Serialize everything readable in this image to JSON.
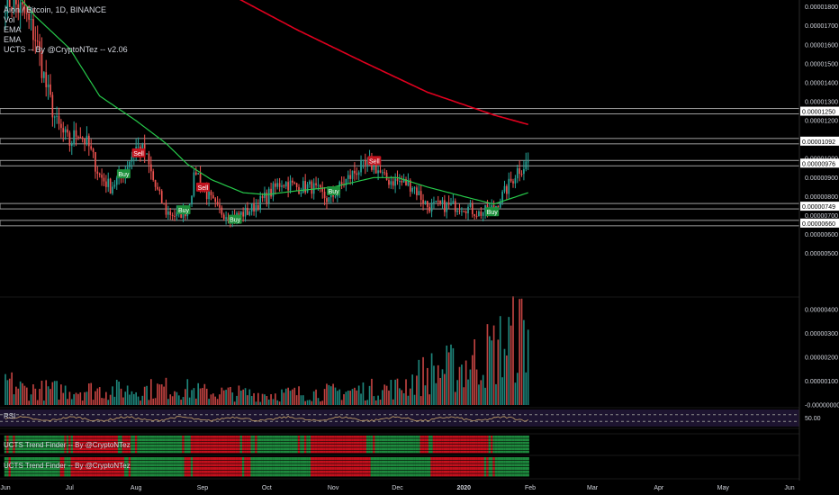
{
  "header": {
    "symbol_line": "Aion / Bitcoin, 1D, BINANCE",
    "indicators": [
      "Vol",
      "EMA",
      "EMA",
      "UCTS -- By @CryptoNTez -- v2.06"
    ]
  },
  "panels": {
    "rsi_label": "RSI",
    "rsi_mid_tick": "50.00",
    "trend1_label": "UCTS Trend Finder -- By @CryptoNTez",
    "trend2_label": "UCTS Trend Finder -- By @CryptoNTez"
  },
  "colors": {
    "up": "#26a69a",
    "down": "#ef5350",
    "ema_fast": "#26c94a",
    "ema_slow": "#e0001e",
    "buy_bg": "#1b8f3a",
    "sell_bg": "#c2131e",
    "rsi_bg": "#1d1430",
    "rsi_line": "#c9a56b"
  },
  "chart_data": {
    "type": "candlestick",
    "x_labels": [
      "Jun",
      "Jul",
      "Aug",
      "Sep",
      "Oct",
      "Nov",
      "Dec",
      "2020",
      "Feb",
      "Mar",
      "Apr",
      "May",
      "Jun"
    ],
    "price_ticks": [
      "0.00001800",
      "0.00001700",
      "0.00001600",
      "0.00001500",
      "0.00001400",
      "0.00001300",
      "0.00001200",
      "0.00001100",
      "0.00001000",
      "0.00000900",
      "0.00000800",
      "0.00000700",
      "0.00000600",
      "0.00000500"
    ],
    "price_range": [
      4.6e-06,
      1.86e-05
    ],
    "volume_ticks": [
      "0.00000400",
      "0.00000300",
      "0.00000200",
      "0.00000100",
      "-0.00000000"
    ],
    "volume_range": [
      0,
      4.3e-06
    ],
    "horizontal_levels": [
      {
        "price": 1.25e-05,
        "label": "0.00001250"
      },
      {
        "price": 1.092e-05,
        "label": "0.00001092"
      },
      {
        "price": 9.76e-06,
        "label": "0.00000976"
      },
      {
        "price": 7.49e-06,
        "label": "0.00000749"
      },
      {
        "price": 6.6e-06,
        "label": "0.00000660"
      }
    ],
    "signals": [
      {
        "type": "Sell",
        "date": "2019-08-02",
        "price": 1.03e-05
      },
      {
        "type": "Buy",
        "date": "2019-07-26",
        "price": 9.2e-06
      },
      {
        "type": "Sell",
        "date": "2019-09-01",
        "price": 8.5e-06
      },
      {
        "type": "Buy",
        "date": "2019-08-23",
        "price": 7.3e-06
      },
      {
        "type": "Buy",
        "date": "2019-09-16",
        "price": 6.8e-06
      },
      {
        "type": "Buy",
        "date": "2019-11-01",
        "price": 8.3e-06
      },
      {
        "type": "Sell",
        "date": "2019-11-20",
        "price": 9.9e-06
      },
      {
        "type": "Buy",
        "date": "2020-01-14",
        "price": 7.2e-06
      }
    ],
    "ema_fast_anchors": [
      {
        "date": "2019-06-01",
        "price": 1.94e-05
      },
      {
        "date": "2019-06-15",
        "price": 1.75e-05
      },
      {
        "date": "2019-07-01",
        "price": 1.58e-05
      },
      {
        "date": "2019-07-15",
        "price": 1.33e-05
      },
      {
        "date": "2019-08-01",
        "price": 1.2e-05
      },
      {
        "date": "2019-08-15",
        "price": 1.08e-05
      },
      {
        "date": "2019-08-25",
        "price": 9.7e-06
      },
      {
        "date": "2019-09-05",
        "price": 8.9e-06
      },
      {
        "date": "2019-09-20",
        "price": 8.2e-06
      },
      {
        "date": "2019-10-01",
        "price": 8.1e-06
      },
      {
        "date": "2019-10-15",
        "price": 8.3e-06
      },
      {
        "date": "2019-11-01",
        "price": 8.5e-06
      },
      {
        "date": "2019-11-20",
        "price": 9e-06
      },
      {
        "date": "2019-12-01",
        "price": 9e-06
      },
      {
        "date": "2019-12-15",
        "price": 8.5e-06
      },
      {
        "date": "2020-01-01",
        "price": 8e-06
      },
      {
        "date": "2020-01-15",
        "price": 7.6e-06
      },
      {
        "date": "2020-01-31",
        "price": 8.2e-06
      }
    ],
    "ema_slow_anchors": [
      {
        "date": "2019-09-15",
        "price": 1.86e-05
      },
      {
        "date": "2019-10-15",
        "price": 1.68e-05
      },
      {
        "date": "2019-11-15",
        "price": 1.51e-05
      },
      {
        "date": "2019-12-15",
        "price": 1.35e-05
      },
      {
        "date": "2020-01-15",
        "price": 1.23e-05
      },
      {
        "date": "2020-01-31",
        "price": 1.18e-05
      }
    ],
    "price_anchors": [
      {
        "date": "2019-06-01",
        "price": 1.85e-05
      },
      {
        "date": "2019-06-05",
        "price": 1.82e-05
      },
      {
        "date": "2019-06-10",
        "price": 1.76e-05
      },
      {
        "date": "2019-06-15",
        "price": 1.64e-05
      },
      {
        "date": "2019-06-20",
        "price": 1.38e-05
      },
      {
        "date": "2019-06-25",
        "price": 1.18e-05
      },
      {
        "date": "2019-07-01",
        "price": 1.08e-05
      },
      {
        "date": "2019-07-05",
        "price": 1.15e-05
      },
      {
        "date": "2019-07-10",
        "price": 1.06e-05
      },
      {
        "date": "2019-07-15",
        "price": 9.1e-06
      },
      {
        "date": "2019-07-20",
        "price": 8.5e-06
      },
      {
        "date": "2019-07-25",
        "price": 9.1e-06
      },
      {
        "date": "2019-08-01",
        "price": 1.06e-05
      },
      {
        "date": "2019-08-05",
        "price": 1.03e-05
      },
      {
        "date": "2019-08-10",
        "price": 8.5e-06
      },
      {
        "date": "2019-08-15",
        "price": 7.2e-06
      },
      {
        "date": "2019-08-20",
        "price": 7e-06
      },
      {
        "date": "2019-08-25",
        "price": 7.3e-06
      },
      {
        "date": "2019-08-29",
        "price": 9.4e-06
      },
      {
        "date": "2019-09-02",
        "price": 8.3e-06
      },
      {
        "date": "2019-09-08",
        "price": 7.3e-06
      },
      {
        "date": "2019-09-15",
        "price": 6.9e-06
      },
      {
        "date": "2019-09-22",
        "price": 7.2e-06
      },
      {
        "date": "2019-10-01",
        "price": 8e-06
      },
      {
        "date": "2019-10-08",
        "price": 8.8e-06
      },
      {
        "date": "2019-10-15",
        "price": 8.5e-06
      },
      {
        "date": "2019-10-22",
        "price": 8.5e-06
      },
      {
        "date": "2019-10-30",
        "price": 7.8e-06
      },
      {
        "date": "2019-11-05",
        "price": 8.6e-06
      },
      {
        "date": "2019-11-12",
        "price": 9.4e-06
      },
      {
        "date": "2019-11-20",
        "price": 9.7e-06
      },
      {
        "date": "2019-11-25",
        "price": 8.9e-06
      },
      {
        "date": "2019-12-01",
        "price": 8.8e-06
      },
      {
        "date": "2019-12-08",
        "price": 8.6e-06
      },
      {
        "date": "2019-12-15",
        "price": 7.5e-06
      },
      {
        "date": "2019-12-22",
        "price": 7.5e-06
      },
      {
        "date": "2020-01-01",
        "price": 7.5e-06
      },
      {
        "date": "2020-01-08",
        "price": 7.1e-06
      },
      {
        "date": "2020-01-15",
        "price": 7.4e-06
      },
      {
        "date": "2020-01-20",
        "price": 8.2e-06
      },
      {
        "date": "2020-01-26",
        "price": 9.4e-06
      },
      {
        "date": "2020-01-31",
        "price": 9.8e-06
      }
    ],
    "volume_anchors": [
      {
        "date": "2019-06-01",
        "value": 1.1e-06
      },
      {
        "date": "2019-06-10",
        "value": 7e-07
      },
      {
        "date": "2019-07-01",
        "value": 7e-07
      },
      {
        "date": "2019-08-01",
        "value": 7e-07
      },
      {
        "date": "2019-08-20",
        "value": 8e-07
      },
      {
        "date": "2019-09-01",
        "value": 6e-07
      },
      {
        "date": "2019-10-01",
        "value": 5e-07
      },
      {
        "date": "2019-11-01",
        "value": 6e-07
      },
      {
        "date": "2019-12-01",
        "value": 8e-07
      },
      {
        "date": "2019-12-15",
        "value": 1.5e-06
      },
      {
        "date": "2020-01-01",
        "value": 1.8e-06
      },
      {
        "date": "2020-01-15",
        "value": 2.5e-06
      },
      {
        "date": "2020-01-31",
        "value": 3.5e-06
      }
    ],
    "rsi_range": [
      0,
      100
    ],
    "rsi_bands": [
      70,
      30
    ]
  }
}
